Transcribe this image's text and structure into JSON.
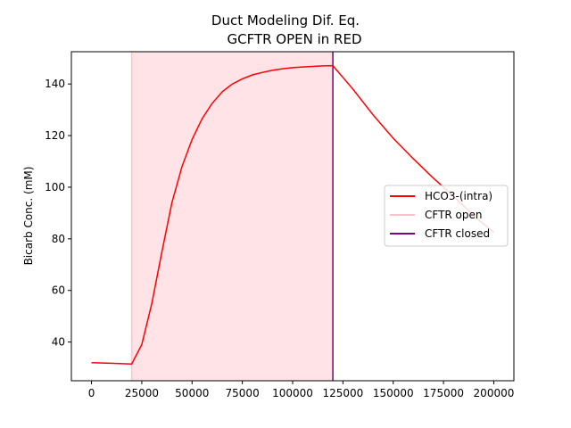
{
  "chart_data": {
    "type": "line",
    "title": [
      "Duct Modeling Dif. Eq.",
      "GCFTR OPEN in RED"
    ],
    "xlabel": "",
    "ylabel": "Bicarb Conc. (mM)",
    "xlim": [
      -10000,
      210000
    ],
    "ylim": [
      25,
      152.5
    ],
    "xticks": [
      0,
      25000,
      50000,
      75000,
      100000,
      125000,
      150000,
      175000,
      200000
    ],
    "yticks": [
      40,
      60,
      80,
      100,
      120,
      140
    ],
    "grid": false,
    "legend_position": "center-right",
    "shaded_region": {
      "x_start": 20000,
      "x_end": 120000,
      "color": "#ffe3e6"
    },
    "series": [
      {
        "name": "HCO3-(intra)",
        "color": "#ff0000",
        "x": [
          0,
          20000,
          20000,
          25000,
          30000,
          35000,
          40000,
          45000,
          50000,
          55000,
          60000,
          65000,
          70000,
          75000,
          80000,
          85000,
          90000,
          95000,
          100000,
          105000,
          110000,
          115000,
          120000,
          130000,
          140000,
          150000,
          160000,
          170000,
          180000,
          190000,
          200000
        ],
        "y": [
          32.0,
          31.5,
          31.5,
          39.0,
          55.0,
          75.0,
          94.0,
          108.0,
          118.5,
          126.5,
          132.5,
          137.0,
          140.0,
          142.0,
          143.5,
          144.5,
          145.3,
          145.9,
          146.3,
          146.6,
          146.8,
          147.0,
          147.1,
          138.0,
          128.0,
          119.0,
          111.0,
          103.5,
          96.5,
          89.0,
          82.5
        ]
      },
      {
        "name": "CFTR open",
        "color": "#ffc0cb",
        "vline_x": 20000
      },
      {
        "name": "CFTR closed",
        "color": "#800080",
        "vline_x": 120000
      }
    ]
  }
}
